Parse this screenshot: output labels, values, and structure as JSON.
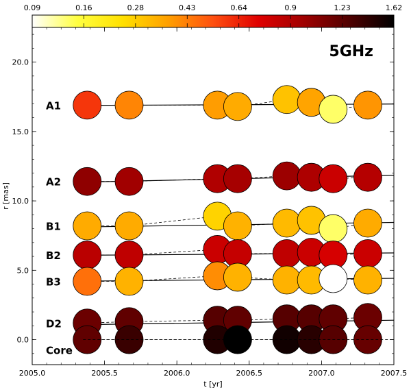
{
  "chart_data": {
    "type": "scatter",
    "annotation": "5GHz",
    "xlabel": "t [yr]",
    "ylabel": "r [mas]",
    "xlim": [
      2005.0,
      2007.5
    ],
    "ylim": [
      -1.8,
      22.5
    ],
    "x_ticks": [
      2005.0,
      2005.5,
      2006.0,
      2006.5,
      2007.0,
      2007.5
    ],
    "x_tick_labels": [
      "2005.0",
      "2005.5",
      "2006.0",
      "2006.5",
      "2007.0",
      "2007.5"
    ],
    "y_ticks": [
      0.0,
      5.0,
      10.0,
      15.0,
      20.0
    ],
    "y_tick_labels": [
      "0.0",
      "5.0",
      "10.0",
      "15.0",
      "20.0"
    ],
    "colorbar": {
      "ticks": [
        0.09,
        0.16,
        0.28,
        0.43,
        0.64,
        0.9,
        1.23,
        1.62
      ],
      "tick_labels": [
        "0.09",
        "0.16",
        "0.28",
        "0.43",
        "0.64",
        "0.9",
        "1.23",
        "1.62"
      ],
      "colors": [
        "#ffffff",
        "#ffff40",
        "#ffe000",
        "#ffa000",
        "#ff5010",
        "#e00000",
        "#a00000",
        "#500000",
        "#000000"
      ]
    },
    "epochs": [
      2005.38,
      2005.67,
      2006.28,
      2006.42,
      2006.76,
      2006.93,
      2007.08,
      2007.32
    ],
    "series": [
      {
        "name": "A1",
        "r": [
          16.9,
          16.9,
          16.9,
          16.8,
          17.3,
          17.1,
          16.6,
          16.9
        ],
        "flux": [
          0.43,
          0.3,
          0.27,
          0.25,
          0.22,
          0.26,
          0.12,
          0.28
        ],
        "fit": [
          16.88,
          16.98
        ]
      },
      {
        "name": "A2",
        "r": [
          11.4,
          11.4,
          11.6,
          11.6,
          11.8,
          11.7,
          11.6,
          11.7
        ],
        "flux": [
          0.85,
          0.78,
          0.72,
          0.76,
          0.8,
          0.73,
          0.62,
          0.7
        ],
        "fit": [
          11.35,
          11.85
        ]
      },
      {
        "name": "B1",
        "r": [
          8.2,
          8.2,
          8.9,
          8.2,
          8.4,
          8.6,
          8.0,
          8.4
        ],
        "flux": [
          0.25,
          0.25,
          0.2,
          0.24,
          0.23,
          0.22,
          0.12,
          0.25
        ],
        "fit": [
          8.12,
          8.45
        ]
      },
      {
        "name": "B2",
        "r": [
          6.1,
          6.1,
          6.5,
          6.2,
          6.2,
          6.3,
          6.1,
          6.2
        ],
        "flux": [
          0.68,
          0.66,
          0.62,
          0.64,
          0.66,
          0.62,
          0.58,
          0.62
        ],
        "fit": [
          6.08,
          6.25
        ]
      },
      {
        "name": "B3",
        "r": [
          4.2,
          4.2,
          4.6,
          4.5,
          4.3,
          4.3,
          4.4,
          4.3
        ],
        "flux": [
          0.33,
          0.24,
          0.29,
          0.24,
          0.24,
          0.23,
          0.09,
          0.24
        ],
        "fit": [
          4.22,
          4.42
        ]
      },
      {
        "name": "D2",
        "r": [
          1.2,
          1.3,
          1.4,
          1.4,
          1.5,
          1.5,
          1.5,
          1.6
        ],
        "flux": [
          1.0,
          1.05,
          1.1,
          1.05,
          1.1,
          1.1,
          1.05,
          1.0
        ],
        "fit": [
          1.08,
          1.4
        ]
      },
      {
        "name": "Core",
        "r": [
          0.0,
          0.0,
          0.0,
          0.0,
          0.0,
          0.0,
          0.0,
          0.0
        ],
        "flux": [
          1.05,
          1.25,
          1.4,
          1.62,
          1.5,
          1.35,
          1.1,
          1.02
        ],
        "fit": [
          0.0,
          0.0
        ]
      }
    ]
  }
}
